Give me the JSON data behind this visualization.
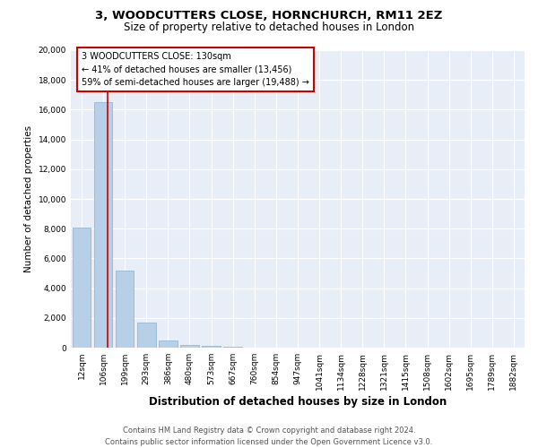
{
  "title1": "3, WOODCUTTERS CLOSE, HORNCHURCH, RM11 2EZ",
  "title2": "Size of property relative to detached houses in London",
  "xlabel": "Distribution of detached houses by size in London",
  "ylabel": "Number of detached properties",
  "categories": [
    "12sqm",
    "106sqm",
    "199sqm",
    "293sqm",
    "386sqm",
    "480sqm",
    "573sqm",
    "667sqm",
    "760sqm",
    "854sqm",
    "947sqm",
    "1041sqm",
    "1134sqm",
    "1228sqm",
    "1321sqm",
    "1415sqm",
    "1508sqm",
    "1602sqm",
    "1695sqm",
    "1789sqm",
    "1882sqm"
  ],
  "values": [
    8050,
    16500,
    5200,
    1720,
    460,
    200,
    100,
    50,
    28,
    12,
    5,
    3,
    2,
    1,
    1,
    1,
    0,
    0,
    0,
    0,
    0
  ],
  "bar_color": "#b8cfe8",
  "bar_edge_color": "#8aafd0",
  "red_line_x": 1.22,
  "annotation_line1": "3 WOODCUTTERS CLOSE: 130sqm",
  "annotation_line2": "← 41% of detached houses are smaller (13,456)",
  "annotation_line3": "59% of semi-detached houses are larger (19,488) →",
  "annot_box_facecolor": "#ffffff",
  "annot_box_edgecolor": "#cc0000",
  "red_line_color": "#cc0000",
  "ylim": [
    0,
    20000
  ],
  "yticks": [
    0,
    2000,
    4000,
    6000,
    8000,
    10000,
    12000,
    14000,
    16000,
    18000,
    20000
  ],
  "footer1": "Contains HM Land Registry data © Crown copyright and database right 2024.",
  "footer2": "Contains public sector information licensed under the Open Government Licence v3.0.",
  "plot_bg_color": "#e8eef8",
  "title1_fontsize": 9.5,
  "title2_fontsize": 8.5,
  "xlabel_fontsize": 8.5,
  "ylabel_fontsize": 7.5,
  "tick_fontsize": 6.5,
  "annot_fontsize": 7,
  "footer_fontsize": 6
}
